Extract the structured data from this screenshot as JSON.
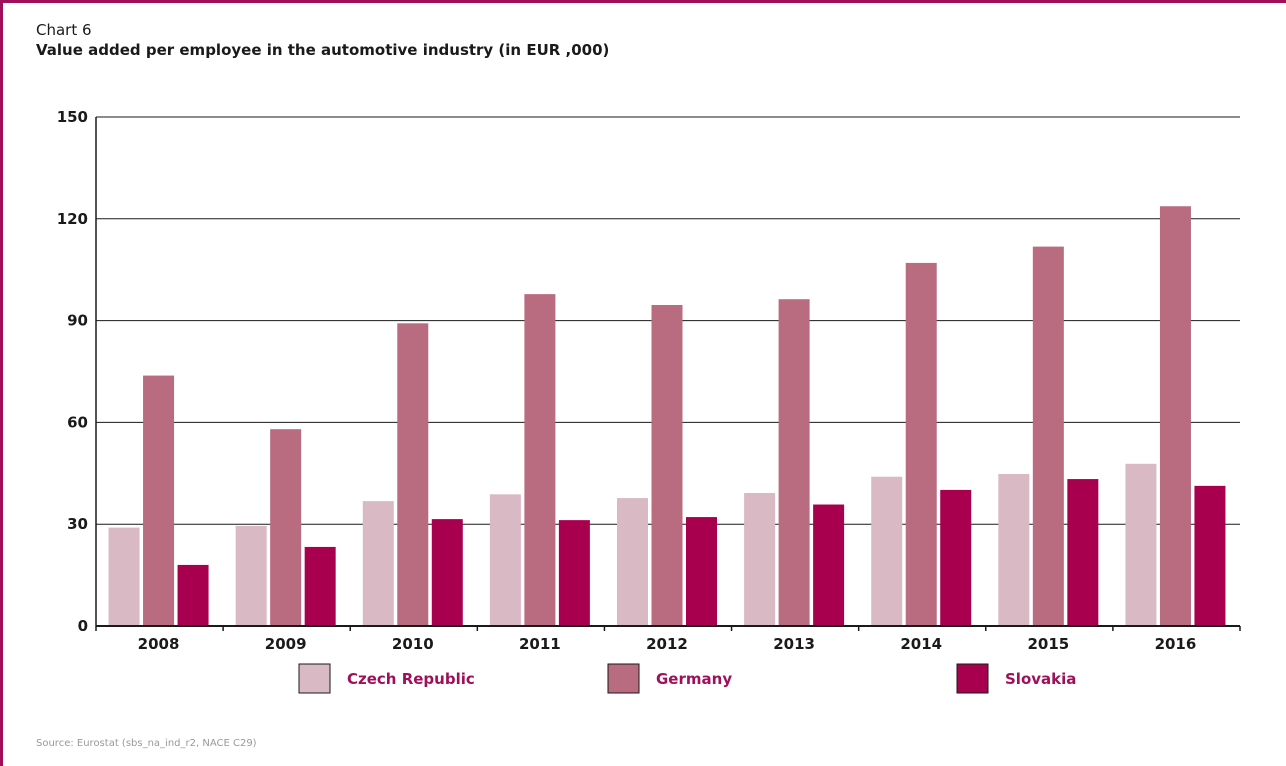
{
  "header": {
    "chart_number": "Chart 6",
    "title": "Value added per employee in the automotive industry (in EUR ,000)"
  },
  "source": "Source: Eurostat (sbs_na_ind_r2, NACE C29)",
  "colors": {
    "frame": "#a0105a",
    "legend_text": "#a0105a",
    "czech": "#d9b9c3",
    "germany": "#b96b7f",
    "slovakia": "#a8004f"
  },
  "chart_data": {
    "type": "bar",
    "title": "Value added per employee in the automotive industry (in EUR ,000)",
    "xlabel": "",
    "ylabel": "",
    "ylim": [
      0,
      150
    ],
    "yticks": [
      "0",
      "30",
      "60",
      "90",
      "120",
      "150"
    ],
    "grid": true,
    "legend_position": "bottom",
    "categories": [
      "2008",
      "2009",
      "2010",
      "2011",
      "2012",
      "2013",
      "2014",
      "2015",
      "2016"
    ],
    "series": [
      {
        "name": "Czech Republic",
        "color": "#d9b9c3",
        "values": [
          29,
          29.5,
          36.8,
          38.8,
          37.7,
          39.2,
          44,
          44.8,
          47.8
        ]
      },
      {
        "name": "Germany",
        "color": "#b96b7f",
        "values": [
          73.8,
          58,
          89.2,
          97.8,
          94.6,
          96.3,
          107,
          111.8,
          123.7
        ]
      },
      {
        "name": "Slovakia",
        "color": "#a8004f",
        "values": [
          18,
          23.3,
          31.5,
          31.2,
          32.1,
          35.8,
          40.1,
          43.3,
          41.3
        ]
      }
    ]
  }
}
